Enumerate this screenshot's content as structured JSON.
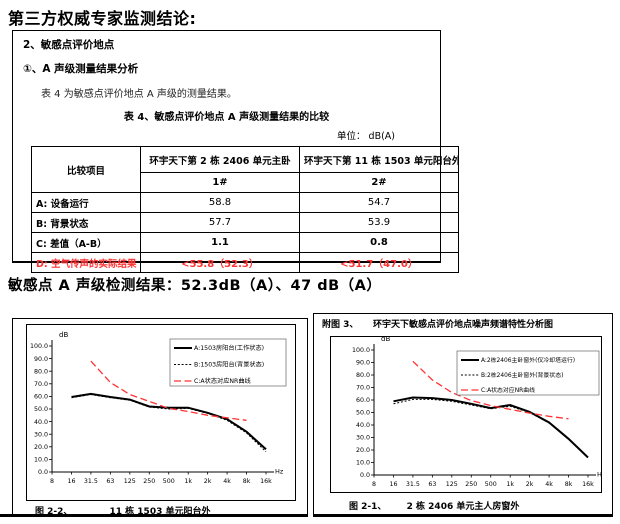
{
  "page": {
    "title": "第三方权威专家监测结论:"
  },
  "colors": {
    "red": "#ff3232",
    "black": "#000000"
  },
  "report_box": {
    "section_heading": "2、敏感点评价地点",
    "subsection_heading": "①、A 声级测量结果分析",
    "intro_text": "表 4 为敏感点评价地点 A 声级的测量结果。",
    "table_caption": "表 4、敏感点评价地点 A 声级测量结果的比较",
    "unit_label": "单位：  dB(A)",
    "table": {
      "corner_header": "比较项目",
      "locations": [
        {
          "name": "环宇天下第 2 栋 2406 单元主卧",
          "point": "1#"
        },
        {
          "name": "环宇天下第 11 栋 1503 单元阳台外",
          "point": "2#"
        }
      ],
      "rows": [
        {
          "label": "A: 设备运行",
          "v1": "58.8",
          "v2": "54.7"
        },
        {
          "label": "B: 背景状态",
          "v1": "57.7",
          "v2": "53.9"
        },
        {
          "label": "C: 差值（A-B）",
          "v1": "1.1",
          "v2": "0.8"
        },
        {
          "label": "D: 空气传声的实际结果",
          "v1": "<55.8（52.3）",
          "v2": "<51.7（47.0）"
        }
      ]
    }
  },
  "result_line": "敏感点 A 声级检测结果：52.3dB（A）、47 dB（A）",
  "chart_data": [
    {
      "type": "line",
      "figure_label": "图 2-2、",
      "caption": "11 栋 1503 单元阳台外",
      "ylabel": "dB",
      "xlabel": "Hz",
      "ylim": [
        0,
        100
      ],
      "ytick_step": 10,
      "grid": false,
      "legend_position": "top-right",
      "categories": [
        "8",
        "16",
        "31.5",
        "63",
        "125",
        "250",
        "500",
        "1k",
        "2k",
        "4k",
        "8k",
        "16k"
      ],
      "series": [
        {
          "name": "A:1503房阳台(工作状态)",
          "style": "solid",
          "color": "#000000",
          "values": [
            null,
            59.5,
            62,
            59.5,
            57.5,
            52,
            51,
            51,
            47,
            42,
            32,
            18
          ]
        },
        {
          "name": "B:1503房阳台(背景状态)",
          "style": "dotted",
          "color": "#000000",
          "values": [
            null,
            59,
            61.5,
            59,
            57,
            51.5,
            50,
            50.5,
            46.5,
            41,
            31,
            16
          ]
        },
        {
          "name": "C:A状态对应NR曲线",
          "style": "dashed",
          "color": "#ff3232",
          "values": [
            null,
            null,
            88,
            71,
            61.5,
            56,
            50.5,
            48,
            45,
            43,
            41,
            null
          ]
        }
      ]
    },
    {
      "type": "line",
      "header_label": "附图 3、",
      "title": "环宇天下敏感点评价地点噪声频谱特性分析图",
      "figure_label": "图 2-1、",
      "caption": "2 栋 2406 单元主人房窗外",
      "ylabel": "dB",
      "xlabel": "Hz",
      "ylim": [
        0,
        100
      ],
      "ytick_step": 10,
      "grid": false,
      "legend_position": "top-right",
      "categories": [
        "8",
        "16",
        "31.5",
        "63",
        "125",
        "250",
        "500",
        "1k",
        "2k",
        "4k",
        "8k",
        "16k"
      ],
      "series": [
        {
          "name": "A:2栋2406主卧窗外(仅冷却塔运行)",
          "style": "solid",
          "color": "#000000",
          "values": [
            null,
            59,
            62,
            61.5,
            60,
            57,
            53.5,
            56,
            50.5,
            42,
            29,
            14
          ]
        },
        {
          "name": "B:2栋2406主卧窗外(背景状态)",
          "style": "dotted",
          "color": "#000000",
          "values": [
            null,
            57,
            60.5,
            60.5,
            59,
            56,
            53,
            55,
            50,
            41.5,
            29,
            14
          ]
        },
        {
          "name": "C:A状态对应NR曲线",
          "style": "dashed",
          "color": "#ff3232",
          "values": [
            null,
            null,
            91,
            76,
            66,
            59.5,
            55.5,
            52.5,
            49.5,
            47,
            45,
            null
          ]
        }
      ]
    }
  ]
}
